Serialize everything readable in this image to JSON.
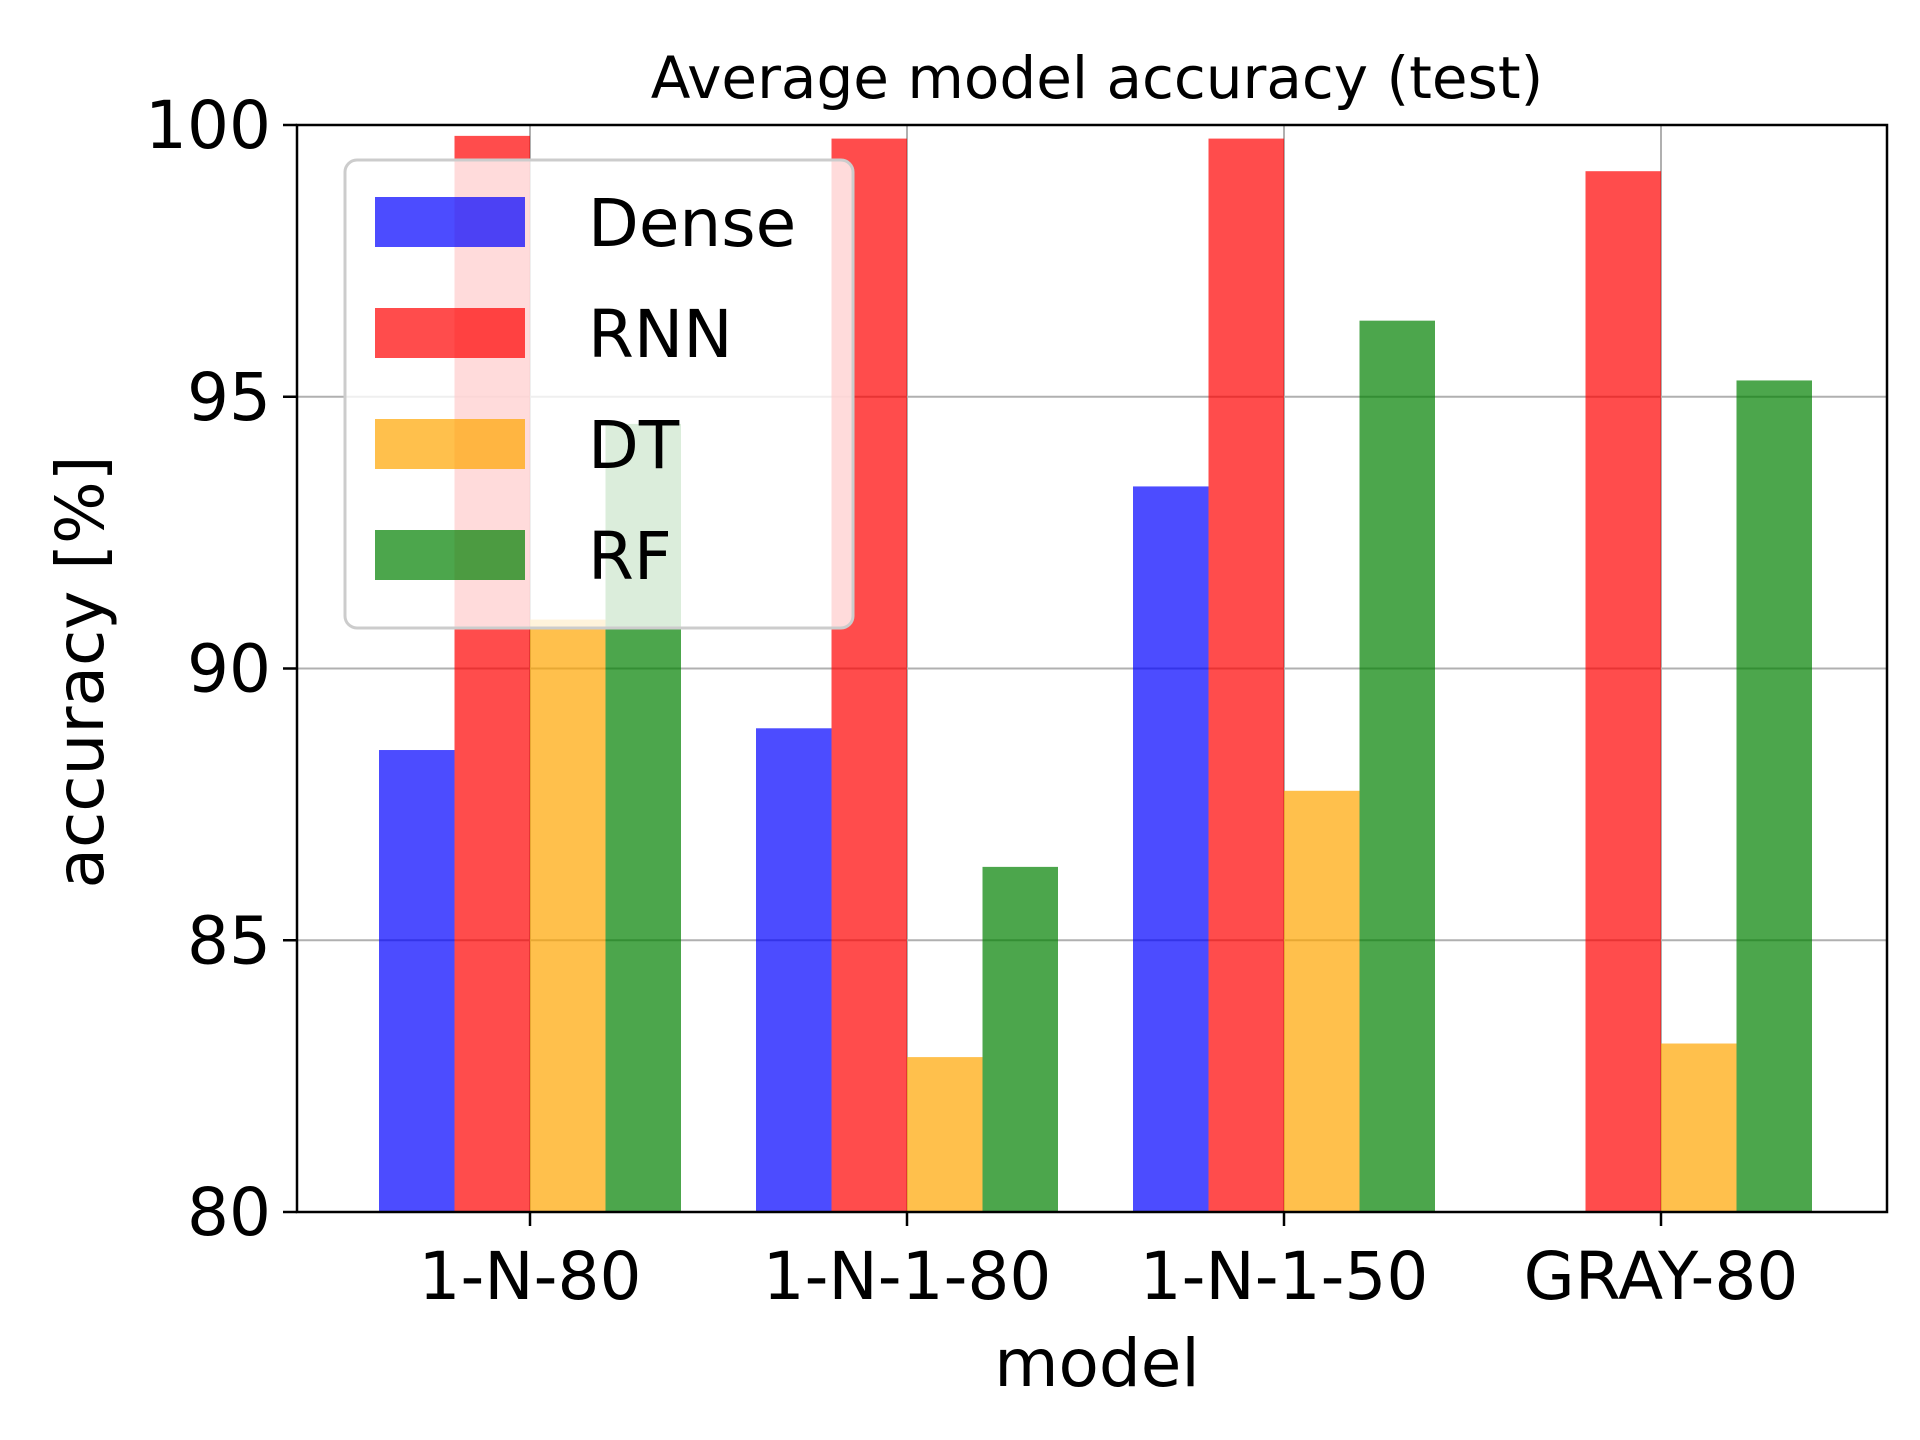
{
  "chart_data": {
    "type": "bar",
    "title": "Average model accuracy (test)",
    "xlabel": "model",
    "ylabel": "accuracy [%]",
    "ylim": [
      80,
      100
    ],
    "yticks": [
      "80",
      "85",
      "90",
      "95",
      "100"
    ],
    "categories": [
      "1-N-80",
      "1-N-1-80",
      "1-N-1-50",
      "GRAY-80"
    ],
    "series": [
      {
        "name": "Dense",
        "color": "#0000ff",
        "values": [
          88.5,
          88.9,
          93.35,
          null
        ]
      },
      {
        "name": "RNN",
        "color": "#ff0000",
        "values": [
          99.8,
          99.75,
          99.75,
          99.15
        ]
      },
      {
        "name": "DT",
        "color": "#ffa500",
        "values": [
          90.9,
          82.85,
          87.75,
          83.1
        ]
      },
      {
        "name": "RF",
        "color": "#008000",
        "values": [
          94.5,
          86.35,
          96.4,
          95.3
        ]
      }
    ],
    "grid": "horizontal and vertical at ticks",
    "legend_position": "upper-left"
  }
}
